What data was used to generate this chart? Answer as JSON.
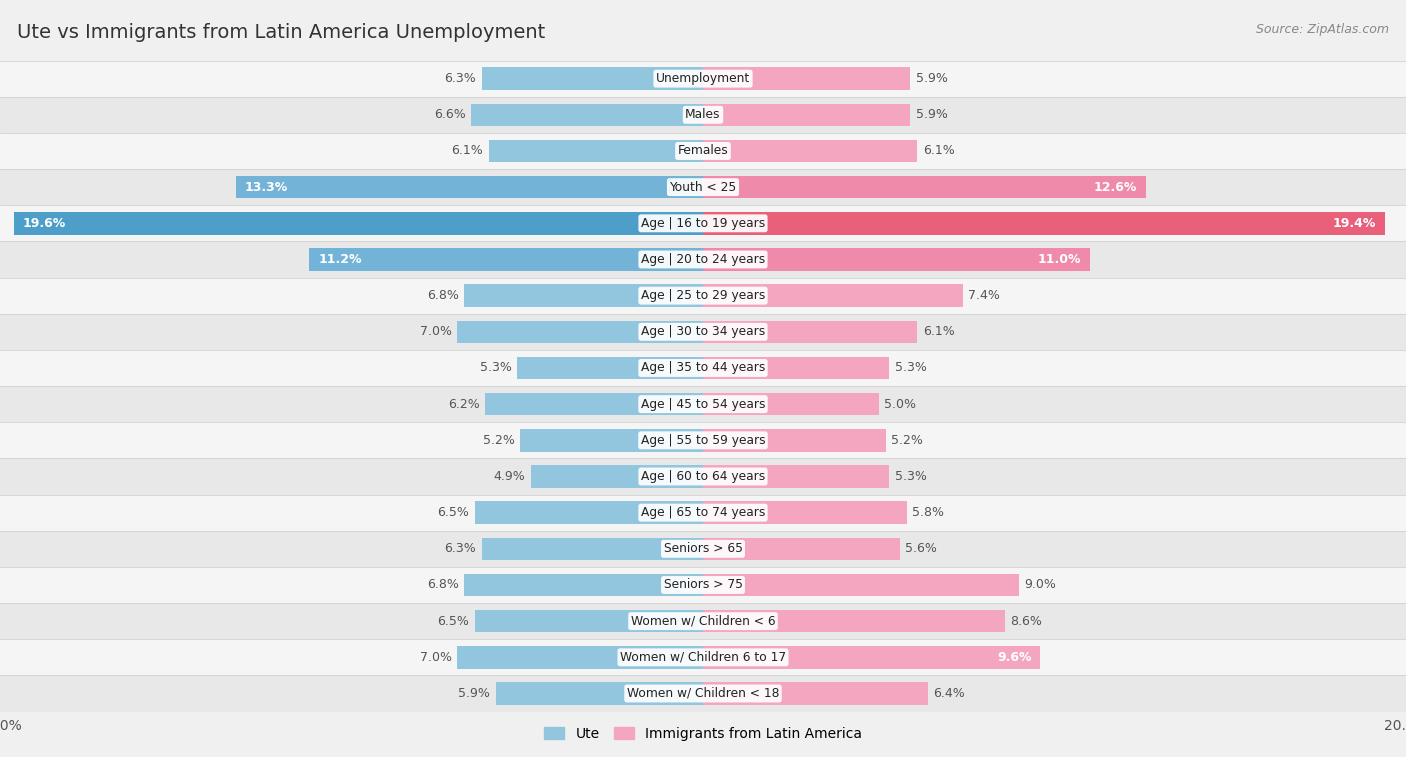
{
  "title": "Ute vs Immigrants from Latin America Unemployment",
  "source": "Source: ZipAtlas.com",
  "categories": [
    "Unemployment",
    "Males",
    "Females",
    "Youth < 25",
    "Age | 16 to 19 years",
    "Age | 20 to 24 years",
    "Age | 25 to 29 years",
    "Age | 30 to 34 years",
    "Age | 35 to 44 years",
    "Age | 45 to 54 years",
    "Age | 55 to 59 years",
    "Age | 60 to 64 years",
    "Age | 65 to 74 years",
    "Seniors > 65",
    "Seniors > 75",
    "Women w/ Children < 6",
    "Women w/ Children 6 to 17",
    "Women w/ Children < 18"
  ],
  "ute_values": [
    6.3,
    6.6,
    6.1,
    13.3,
    19.6,
    11.2,
    6.8,
    7.0,
    5.3,
    6.2,
    5.2,
    4.9,
    6.5,
    6.3,
    6.8,
    6.5,
    7.0,
    5.9
  ],
  "immigrant_values": [
    5.9,
    5.9,
    6.1,
    12.6,
    19.4,
    11.0,
    7.4,
    6.1,
    5.3,
    5.0,
    5.2,
    5.3,
    5.8,
    5.6,
    9.0,
    8.6,
    9.6,
    6.4
  ],
  "ute_color_normal": "#92c5de",
  "ute_color_medium": "#74b3d8",
  "ute_color_strong": "#4d9ec8",
  "immigrant_color_normal": "#f4a6c0",
  "immigrant_color_medium": "#f08aaa",
  "immigrant_color_strong": "#e8607a",
  "row_colors": [
    "#f5f5f5",
    "#e8e8e8"
  ],
  "highlight_row_indices": [
    3,
    4
  ],
  "bg_color": "#f0f0f0",
  "xlim": 20.0,
  "bar_height": 0.62,
  "title_fontsize": 14,
  "label_fontsize": 9,
  "cat_fontsize": 8.8,
  "source_fontsize": 9,
  "legend_fontsize": 10,
  "inside_label_threshold": 9.5
}
